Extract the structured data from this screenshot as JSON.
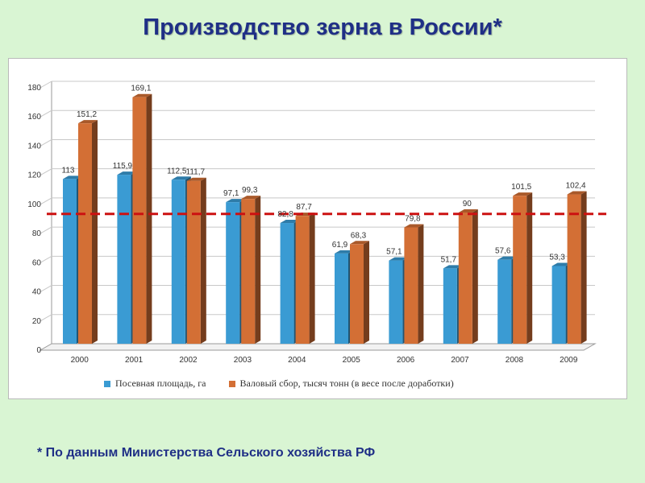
{
  "title": "Производство зерна в России*",
  "footnote": "* По данным Министерства Сельского хозяйства РФ",
  "colors": {
    "series1": "#3a9bd3",
    "series2": "#d36f35",
    "reference_line": "#cc1111",
    "grid": "#c8c8c8",
    "title": "#1f2f86",
    "background": "#d9f5d3"
  },
  "chart_data": {
    "type": "bar",
    "title": "",
    "xlabel": "",
    "ylabel": "",
    "categories": [
      "2000",
      "2001",
      "2002",
      "2003",
      "2004",
      "2005",
      "2006",
      "2007",
      "2008",
      "2009"
    ],
    "series": [
      {
        "name": "Посевная площадь, га",
        "values": [
          113,
          115.9,
          112.5,
          97.1,
          82.8,
          61.9,
          57.1,
          51.7,
          57.6,
          53.3
        ],
        "labels": [
          "113",
          "115,9",
          "112,5",
          "97,1",
          "82,8",
          "61,9",
          "57,1",
          "51,7",
          "57,6",
          "53,3"
        ]
      },
      {
        "name": "Валовый сбор, тысяч тонн (в весе после доработки)",
        "values": [
          151.2,
          169.1,
          111.7,
          99.3,
          87.7,
          68.3,
          79.8,
          90,
          101.5,
          102.4
        ],
        "labels": [
          "151,2",
          "169,1",
          "111,7",
          "99,3",
          "87,7",
          "68,3",
          "79,8",
          "90",
          "101,5",
          "102,4"
        ]
      }
    ],
    "ylim": [
      0,
      180
    ],
    "yticks": [
      0,
      20,
      40,
      60,
      80,
      100,
      120,
      140,
      160,
      180
    ],
    "reference_line": 89,
    "grid": true,
    "legend": "bottom"
  }
}
